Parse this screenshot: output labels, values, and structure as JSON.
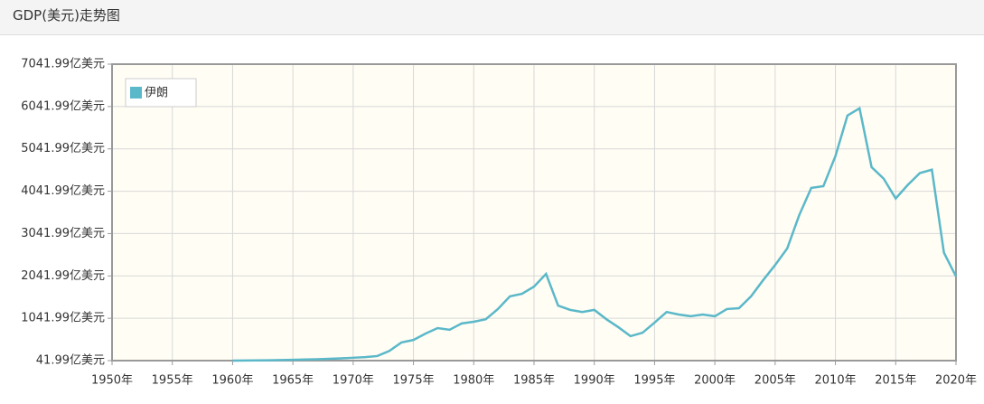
{
  "chart_data": {
    "type": "line",
    "title": "GDP(美元)走势图",
    "x": [
      1960,
      1961,
      1962,
      1963,
      1964,
      1965,
      1966,
      1967,
      1968,
      1969,
      1970,
      1971,
      1972,
      1973,
      1974,
      1975,
      1976,
      1977,
      1978,
      1979,
      1980,
      1981,
      1982,
      1983,
      1984,
      1985,
      1986,
      1987,
      1988,
      1989,
      1990,
      1991,
      1992,
      1993,
      1994,
      1995,
      1996,
      1997,
      1998,
      1999,
      2000,
      2001,
      2002,
      2003,
      2004,
      2005,
      2006,
      2007,
      2008,
      2009,
      2010,
      2011,
      2012,
      2013,
      2014,
      2015,
      2016,
      2017,
      2018,
      2019,
      2020
    ],
    "series": [
      {
        "name": "伊朗",
        "color": "#5bb8c9",
        "values": [
          42,
          45,
          48,
          50,
          55,
          60,
          68,
          75,
          85,
          95,
          110,
          125,
          150,
          270,
          470,
          530,
          680,
          810,
          770,
          920,
          960,
          1020,
          1260,
          1560,
          1620,
          1790,
          2090,
          1340,
          1240,
          1190,
          1240,
          1020,
          830,
          620,
          700,
          940,
          1190,
          1130,
          1090,
          1130,
          1090,
          1260,
          1280,
          1560,
          1940,
          2300,
          2690,
          3480,
          4120,
          4160,
          4870,
          5830,
          6000,
          4610,
          4340,
          3870,
          4190,
          4470,
          4550,
          2590,
          2030
        ]
      }
    ],
    "xlim": [
      1950,
      2020
    ],
    "xticks": [
      {
        "value": 1950,
        "label": "1950年"
      },
      {
        "value": 1955,
        "label": "1955年"
      },
      {
        "value": 1960,
        "label": "1960年"
      },
      {
        "value": 1965,
        "label": "1965年"
      },
      {
        "value": 1970,
        "label": "1970年"
      },
      {
        "value": 1975,
        "label": "1975年"
      },
      {
        "value": 1980,
        "label": "1980年"
      },
      {
        "value": 1985,
        "label": "1985年"
      },
      {
        "value": 1990,
        "label": "1990年"
      },
      {
        "value": 1995,
        "label": "1995年"
      },
      {
        "value": 2000,
        "label": "2000年"
      },
      {
        "value": 2005,
        "label": "2005年"
      },
      {
        "value": 2010,
        "label": "2010年"
      },
      {
        "value": 2015,
        "label": "2015年"
      },
      {
        "value": 2020,
        "label": "2020年"
      }
    ],
    "ylim": [
      41.99,
      7041.99
    ],
    "yticks": [
      {
        "value": 41.99,
        "label": "41.99亿美元"
      },
      {
        "value": 1041.99,
        "label": "1041.99亿美元"
      },
      {
        "value": 2041.99,
        "label": "2041.99亿美元"
      },
      {
        "value": 3041.99,
        "label": "3041.99亿美元"
      },
      {
        "value": 4041.99,
        "label": "4041.99亿美元"
      },
      {
        "value": 5041.99,
        "label": "5041.99亿美元"
      },
      {
        "value": 6041.99,
        "label": "6041.99亿美元"
      },
      {
        "value": 7041.99,
        "label": "7041.99亿美元"
      }
    ],
    "grid": true,
    "legend": "top-left"
  }
}
